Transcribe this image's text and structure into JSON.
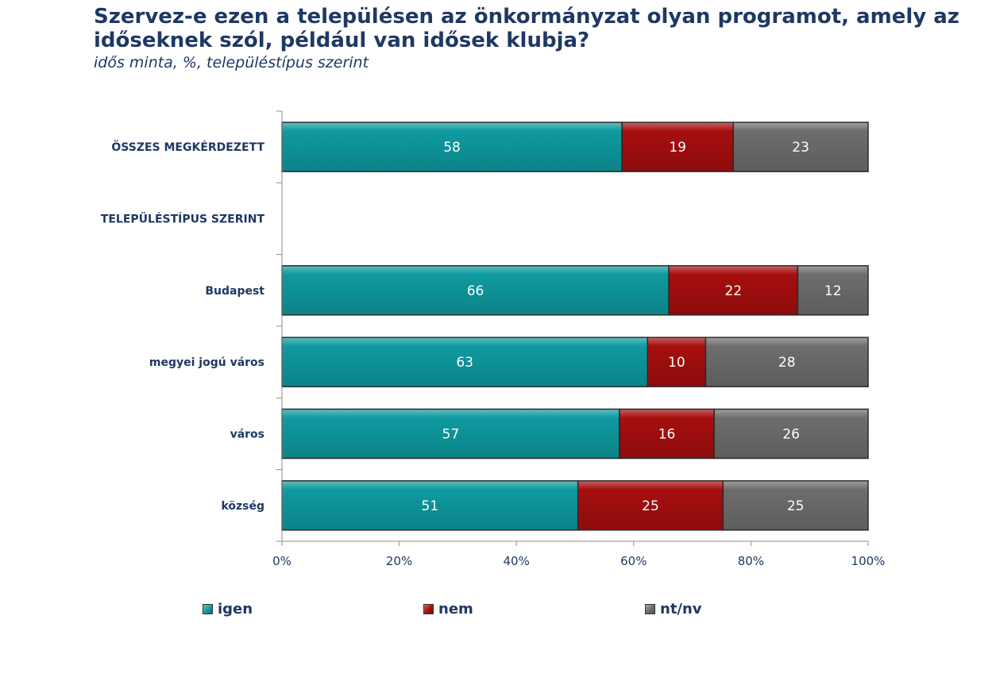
{
  "header": {
    "title": "Szervez-e ezen a településen az önkormányzat olyan programot, amely az időseknek szól, például van idősek klubja?",
    "subtitle": "idős minta, %, településtípus szerint"
  },
  "chart_data": {
    "type": "bar",
    "orientation": "horizontal",
    "stacked": true,
    "percent_stacked": true,
    "categories": [
      "ÖSSZES MEGKÉRDEZETT",
      "TELEPÜLÉSTÍPUS SZERINT",
      "Budapest",
      "megyei jogú város",
      "város",
      "község"
    ],
    "series": [
      {
        "name": "igen",
        "color": "#0e9aa0",
        "values": [
          58,
          null,
          66,
          63,
          57,
          51
        ]
      },
      {
        "name": "nem",
        "color": "#a60e0e",
        "values": [
          19,
          null,
          22,
          10,
          16,
          25
        ]
      },
      {
        "name": "nt/nv",
        "color": "#6d6d6d",
        "values": [
          23,
          null,
          12,
          28,
          26,
          25
        ]
      }
    ],
    "xlim": [
      0,
      100
    ],
    "xticks": [
      "0%",
      "20%",
      "40%",
      "60%",
      "80%",
      "100%"
    ],
    "legend_position": "bottom",
    "grid": false
  }
}
